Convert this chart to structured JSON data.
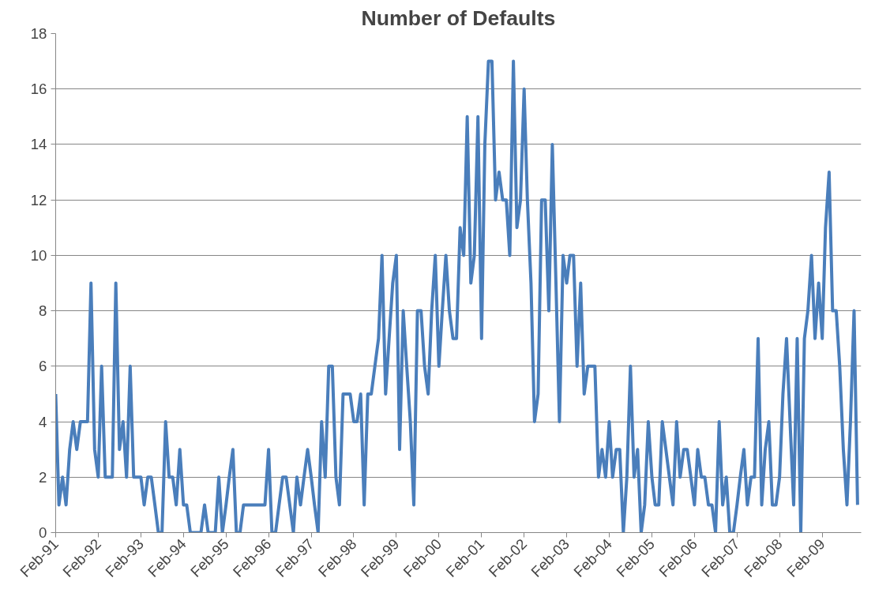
{
  "chart_data": {
    "type": "line",
    "title": "Number of Defaults",
    "x": [
      "1991-02",
      "1991-03",
      "1991-04",
      "1991-05",
      "1991-06",
      "1991-07",
      "1991-08",
      "1991-09",
      "1991-10",
      "1991-11",
      "1991-12",
      "1992-01",
      "1992-02",
      "1992-03",
      "1992-04",
      "1992-05",
      "1992-06",
      "1992-07",
      "1992-08",
      "1992-09",
      "1992-10",
      "1992-11",
      "1992-12",
      "1993-01",
      "1993-02",
      "1993-03",
      "1993-04",
      "1993-05",
      "1993-06",
      "1993-07",
      "1993-08",
      "1993-09",
      "1993-10",
      "1993-11",
      "1993-12",
      "1994-01",
      "1994-02",
      "1994-03",
      "1994-04",
      "1994-05",
      "1994-06",
      "1994-07",
      "1994-08",
      "1994-09",
      "1994-10",
      "1994-11",
      "1994-12",
      "1995-01",
      "1995-02",
      "1995-03",
      "1995-04",
      "1995-05",
      "1995-06",
      "1995-07",
      "1995-08",
      "1995-09",
      "1995-10",
      "1995-11",
      "1995-12",
      "1996-01",
      "1996-02",
      "1996-03",
      "1996-04",
      "1996-05",
      "1996-06",
      "1996-07",
      "1996-08",
      "1996-09",
      "1996-10",
      "1996-11",
      "1996-12",
      "1997-01",
      "1997-02",
      "1997-03",
      "1997-04",
      "1997-05",
      "1997-06",
      "1997-07",
      "1997-08",
      "1997-09",
      "1997-10",
      "1997-11",
      "1997-12",
      "1998-01",
      "1998-02",
      "1998-03",
      "1998-04",
      "1998-05",
      "1998-06",
      "1998-07",
      "1998-08",
      "1998-09",
      "1998-10",
      "1998-11",
      "1998-12",
      "1999-01",
      "1999-02",
      "1999-03",
      "1999-04",
      "1999-05",
      "1999-06",
      "1999-07",
      "1999-08",
      "1999-09",
      "1999-10",
      "1999-11",
      "1999-12",
      "2000-01",
      "2000-02",
      "2000-03",
      "2000-04",
      "2000-05",
      "2000-06",
      "2000-07",
      "2000-08",
      "2000-09",
      "2000-10",
      "2000-11",
      "2000-12",
      "2001-01",
      "2001-02",
      "2001-03",
      "2001-04",
      "2001-05",
      "2001-06",
      "2001-07",
      "2001-08",
      "2001-09",
      "2001-10",
      "2001-11",
      "2001-12",
      "2002-01",
      "2002-02",
      "2002-03",
      "2002-04",
      "2002-05",
      "2002-06",
      "2002-07",
      "2002-08",
      "2002-09",
      "2002-10",
      "2002-11",
      "2002-12",
      "2003-01",
      "2003-02",
      "2003-03",
      "2003-04",
      "2003-05",
      "2003-06",
      "2003-07",
      "2003-08",
      "2003-09",
      "2003-10",
      "2003-11",
      "2003-12",
      "2004-01",
      "2004-02",
      "2004-03",
      "2004-04",
      "2004-05",
      "2004-06",
      "2004-07",
      "2004-08",
      "2004-09",
      "2004-10",
      "2004-11",
      "2004-12",
      "2005-01",
      "2005-02",
      "2005-03",
      "2005-04",
      "2005-05",
      "2005-06",
      "2005-07",
      "2005-08",
      "2005-09",
      "2005-10",
      "2005-11",
      "2005-12",
      "2006-01",
      "2006-02",
      "2006-03",
      "2006-04",
      "2006-05",
      "2006-06",
      "2006-07",
      "2006-08",
      "2006-09",
      "2006-10",
      "2006-11",
      "2006-12",
      "2007-01",
      "2007-02",
      "2007-03",
      "2007-04",
      "2007-05",
      "2007-06",
      "2007-07",
      "2007-08",
      "2007-09",
      "2007-10",
      "2007-11",
      "2007-12",
      "2008-01",
      "2008-02",
      "2008-03",
      "2008-04",
      "2008-05",
      "2008-06",
      "2008-07",
      "2008-08",
      "2008-09",
      "2008-10",
      "2008-11",
      "2008-12",
      "2009-01",
      "2009-02",
      "2009-03",
      "2009-04",
      "2009-05",
      "2009-06",
      "2009-07",
      "2009-08",
      "2009-09",
      "2009-10",
      "2009-11",
      "2009-12"
    ],
    "series": [
      {
        "color": "#4a7ebb",
        "values": [
          5,
          1,
          2,
          1,
          3,
          4,
          3,
          4,
          4,
          4,
          9,
          3,
          2,
          6,
          2,
          2,
          2,
          9,
          3,
          4,
          2,
          6,
          2,
          2,
          2,
          1,
          2,
          2,
          1,
          0,
          0,
          4,
          2,
          2,
          1,
          3,
          1,
          1,
          0,
          0,
          0,
          0,
          1,
          0,
          0,
          0,
          2,
          0,
          1,
          2,
          3,
          0,
          0,
          1,
          1,
          1,
          1,
          1,
          1,
          1,
          3,
          0,
          0,
          1,
          2,
          2,
          1,
          0,
          2,
          1,
          2,
          3,
          2,
          1,
          0,
          4,
          2,
          6,
          6,
          2,
          1,
          5,
          5,
          5,
          4,
          4,
          5,
          1,
          5,
          5,
          6,
          7,
          10,
          5,
          7,
          9,
          10,
          3,
          8,
          6,
          4,
          1,
          8,
          8,
          6,
          5,
          8,
          10,
          6,
          8,
          10,
          8,
          7,
          7,
          11,
          10,
          15,
          9,
          10,
          15,
          7,
          14,
          17,
          17,
          12,
          13,
          12,
          12,
          10,
          17,
          11,
          12,
          16,
          12,
          9,
          4,
          5,
          12,
          12,
          8,
          14,
          9,
          4,
          10,
          9,
          10,
          10,
          6,
          9,
          5,
          6,
          6,
          6,
          2,
          3,
          2,
          4,
          2,
          3,
          3,
          0,
          2,
          6,
          2,
          3,
          0,
          1,
          4,
          2,
          1,
          1,
          4,
          3,
          2,
          1,
          4,
          2,
          3,
          3,
          2,
          1,
          3,
          2,
          2,
          1,
          1,
          0,
          4,
          1,
          2,
          0,
          0,
          1,
          2,
          3,
          1,
          2,
          2,
          7,
          1,
          3,
          4,
          1,
          1,
          2,
          5,
          7,
          4,
          1,
          7,
          0,
          7,
          8,
          10,
          7,
          9,
          7,
          11,
          13,
          8,
          8,
          6,
          3,
          1,
          4,
          8,
          1
        ]
      }
    ],
    "xlim": [
      "1991-02",
      "2010-01"
    ],
    "xticks": [
      {
        "value": "1991-02",
        "label": "Feb-91"
      },
      {
        "value": "1992-02",
        "label": "Feb-92"
      },
      {
        "value": "1993-02",
        "label": "Feb-93"
      },
      {
        "value": "1994-02",
        "label": "Feb-94"
      },
      {
        "value": "1995-02",
        "label": "Feb-95"
      },
      {
        "value": "1996-02",
        "label": "Feb-96"
      },
      {
        "value": "1997-02",
        "label": "Feb-97"
      },
      {
        "value": "1998-02",
        "label": "Feb-98"
      },
      {
        "value": "1999-02",
        "label": "Feb-99"
      },
      {
        "value": "2000-02",
        "label": "Feb-00"
      },
      {
        "value": "2001-02",
        "label": "Feb-01"
      },
      {
        "value": "2002-02",
        "label": "Feb-02"
      },
      {
        "value": "2003-02",
        "label": "Feb-03"
      },
      {
        "value": "2004-02",
        "label": "Feb-04"
      },
      {
        "value": "2005-02",
        "label": "Feb-05"
      },
      {
        "value": "2006-02",
        "label": "Feb-06"
      },
      {
        "value": "2007-02",
        "label": "Feb-07"
      },
      {
        "value": "2008-02",
        "label": "Feb-08"
      },
      {
        "value": "2009-02",
        "label": "Feb-09"
      }
    ],
    "ylim": [
      0,
      18
    ],
    "yticks": [
      0,
      2,
      4,
      6,
      8,
      10,
      12,
      14,
      16,
      18
    ],
    "grid": "y",
    "marker": "none",
    "line_style": "solid"
  }
}
